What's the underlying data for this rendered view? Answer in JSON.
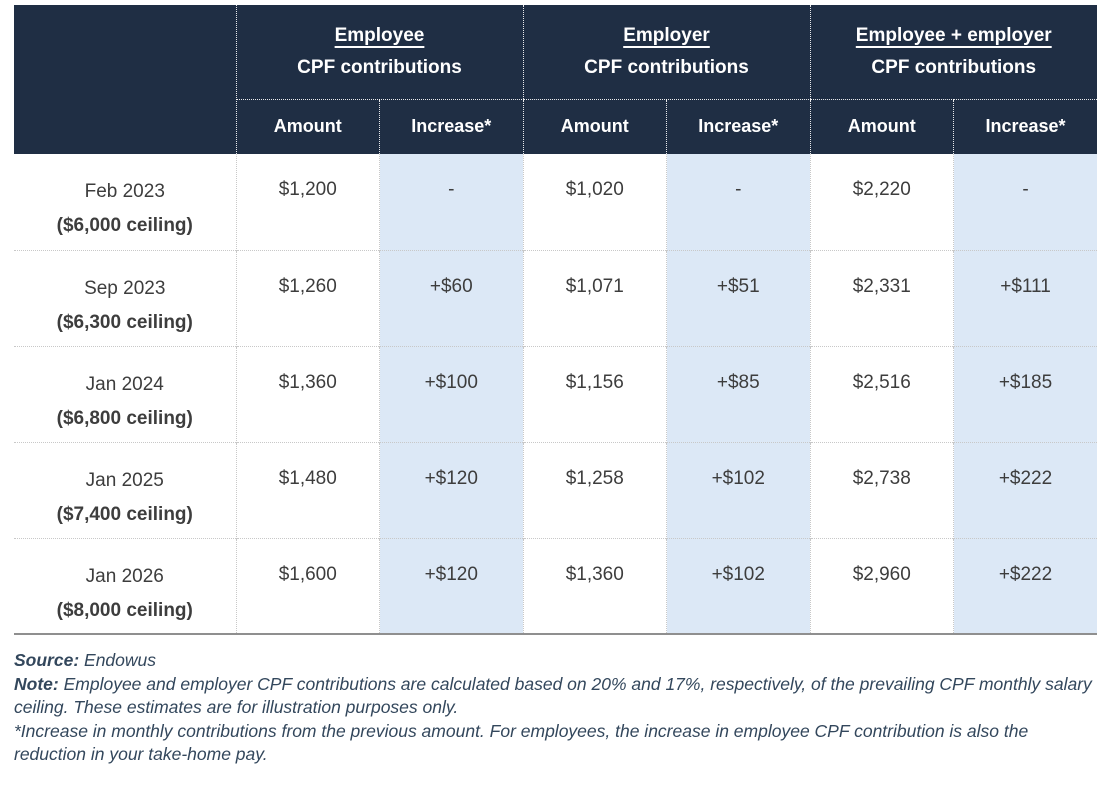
{
  "colors": {
    "header_bg": "#1f2e44",
    "header_text": "#ffffff",
    "highlight_col_bg": "#dce8f6",
    "body_text": "#3d3d3d",
    "footnote_text": "#33475c"
  },
  "chart_data": {
    "type": "table",
    "column_groups": [
      {
        "title": "Employee",
        "subtitle": "CPF contributions"
      },
      {
        "title": "Employer",
        "subtitle": "CPF contributions"
      },
      {
        "title": "Employee + employer",
        "subtitle": "CPF contributions"
      }
    ],
    "sub_headers": {
      "amount": "Amount",
      "increase": "Increase*"
    },
    "rows": [
      {
        "period": "Feb 2023",
        "ceiling": "($6,000 ceiling)",
        "values": [
          "$1,200",
          "-",
          "$1,020",
          "-",
          "$2,220",
          "-"
        ]
      },
      {
        "period": "Sep 2023",
        "ceiling": "($6,300 ceiling)",
        "values": [
          "$1,260",
          "+$60",
          "$1,071",
          "+$51",
          "$2,331",
          "+$111"
        ]
      },
      {
        "period": "Jan 2024",
        "ceiling": "($6,800 ceiling)",
        "values": [
          "$1,360",
          "+$100",
          "$1,156",
          "+$85",
          "$2,516",
          "+$185"
        ]
      },
      {
        "period": "Jan 2025",
        "ceiling": "($7,400 ceiling)",
        "values": [
          "$1,480",
          "+$120",
          "$1,258",
          "+$102",
          "$2,738",
          "+$222"
        ]
      },
      {
        "period": "Jan 2026",
        "ceiling": "($8,000 ceiling)",
        "values": [
          "$1,600",
          "+$120",
          "$1,360",
          "+$102",
          "$2,960",
          "+$222"
        ]
      }
    ]
  },
  "footnotes": {
    "source_label": "Source:",
    "source_value": "Endowus",
    "note_label": "Note:",
    "note_value": "Employee and employer CPF contributions are calculated based on 20% and 17%, respectively, of the prevailing CPF monthly salary ceiling. These estimates are for illustration purposes only.",
    "asterisk_note": "*Increase in monthly contributions from the previous amount. For employees, the increase in employee CPF contribution is also the reduction in your take-home pay."
  }
}
